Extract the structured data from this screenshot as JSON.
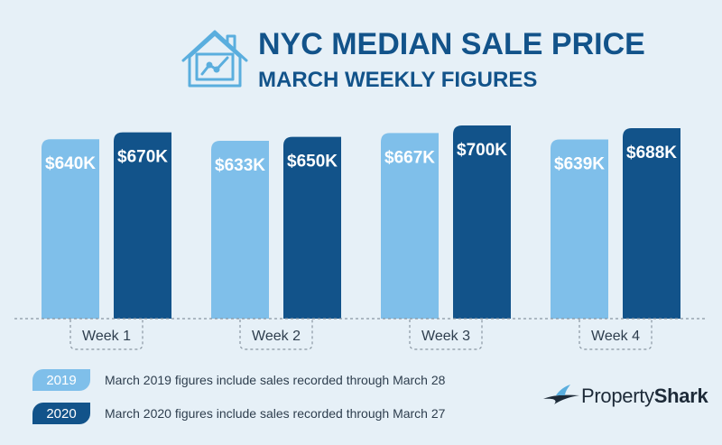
{
  "header": {
    "title": "NYC MEDIAN SALE PRICE",
    "subtitle": "MARCH WEEKLY FIGURES",
    "icon": "house-chart-icon"
  },
  "colors": {
    "series_2019": "#7fbfea",
    "series_2020": "#12538a",
    "title": "#12538a",
    "background": "#e6f0f7"
  },
  "chart_data": {
    "type": "bar",
    "title": "NYC MEDIAN SALE PRICE",
    "subtitle": "MARCH WEEKLY FIGURES",
    "categories": [
      "Week 1",
      "Week 2",
      "Week 3",
      "Week 4"
    ],
    "series": [
      {
        "name": "2019",
        "values": [
          640,
          633,
          667,
          639
        ],
        "labels": [
          "$640K",
          "$633K",
          "$667K",
          "$639K"
        ]
      },
      {
        "name": "2020",
        "values": [
          670,
          650,
          700,
          688
        ],
        "labels": [
          "$670K",
          "$650K",
          "$700K",
          "$688K"
        ]
      }
    ],
    "units": "$K",
    "grid": false,
    "legend": "bottom-left"
  },
  "legend": [
    {
      "badge": "2019",
      "text": "March 2019 figures include sales recorded through March 28"
    },
    {
      "badge": "2020",
      "text": "March 2020 figures include sales recorded through March 27"
    }
  ],
  "brand": {
    "name_light": "Property",
    "name_bold": "Shark",
    "icon": "shark-fin-icon"
  }
}
